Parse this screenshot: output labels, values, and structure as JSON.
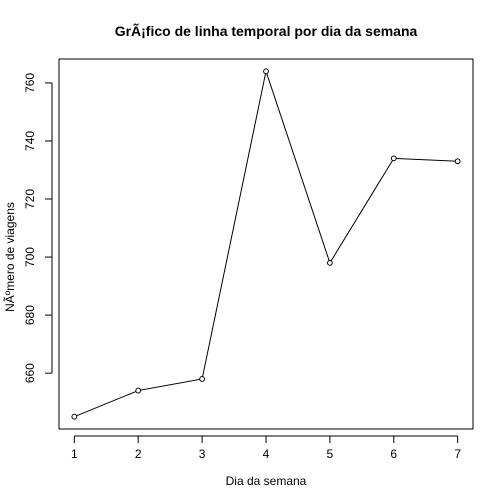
{
  "chart_data": {
    "type": "line",
    "title": "GrÃ¡fico de linha temporal por dia da semana",
    "xlabel": "Dia da semana",
    "ylabel": "NÃºmero de viagens",
    "x": [
      1,
      2,
      3,
      4,
      5,
      6,
      7
    ],
    "values": [
      645,
      654,
      658,
      764,
      698,
      734,
      733
    ],
    "xlim": [
      0.76,
      7.24
    ],
    "ylim": [
      640.76,
      768.24
    ],
    "xticks": [
      1,
      2,
      3,
      4,
      5,
      6,
      7
    ],
    "yticks": [
      660,
      680,
      700,
      720,
      740,
      760
    ],
    "xtick_labels": [
      "1",
      "2",
      "3",
      "4",
      "5",
      "6",
      "7"
    ],
    "ytick_labels": [
      "660",
      "680",
      "700",
      "720",
      "740",
      "760"
    ],
    "markers": "open-circle",
    "line_color": "#000000",
    "grid": false,
    "legend": "none"
  }
}
